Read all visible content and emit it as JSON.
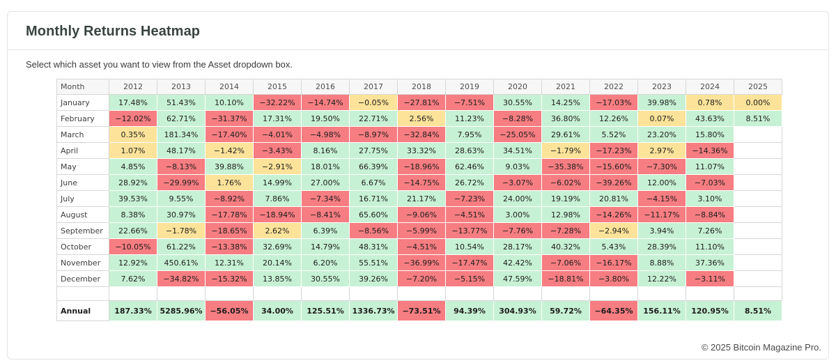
{
  "card": {
    "title": "Monthly Returns Heatmap",
    "description": "Select which asset you want to view from the Asset dropdown box.",
    "footer": "© 2025 Bitcoin Magazine Pro."
  },
  "colors": {
    "g": "#c7f1d4",
    "r": "#f67d81",
    "y": "#fde39a",
    "e": "#ffffff"
  },
  "chart_data": {
    "type": "heatmap",
    "title": "Monthly Returns Heatmap",
    "unit": "percent monthly return",
    "tone_legend": {
      "g": "positive (green)",
      "r": "negative (red)",
      "y": "near-zero (yellow)",
      "e": "no data"
    },
    "columns": [
      "Month",
      "2012",
      "2013",
      "2014",
      "2015",
      "2016",
      "2017",
      "2018",
      "2019",
      "2020",
      "2021",
      "2022",
      "2023",
      "2024",
      "2025"
    ],
    "rows": [
      {
        "label": "January",
        "cells": [
          [
            "17.48%",
            "g"
          ],
          [
            "51.43%",
            "g"
          ],
          [
            "10.10%",
            "g"
          ],
          [
            "−32.22%",
            "r"
          ],
          [
            "−14.74%",
            "r"
          ],
          [
            "−0.05%",
            "y"
          ],
          [
            "−27.81%",
            "r"
          ],
          [
            "−7.51%",
            "r"
          ],
          [
            "30.55%",
            "g"
          ],
          [
            "14.25%",
            "g"
          ],
          [
            "−17.03%",
            "r"
          ],
          [
            "39.98%",
            "g"
          ],
          [
            "0.78%",
            "y"
          ],
          [
            "0.00%",
            "y"
          ]
        ]
      },
      {
        "label": "February",
        "cells": [
          [
            "−12.02%",
            "r"
          ],
          [
            "62.71%",
            "g"
          ],
          [
            "−31.37%",
            "r"
          ],
          [
            "17.31%",
            "g"
          ],
          [
            "19.50%",
            "g"
          ],
          [
            "22.71%",
            "g"
          ],
          [
            "2.56%",
            "y"
          ],
          [
            "11.23%",
            "g"
          ],
          [
            "−8.28%",
            "r"
          ],
          [
            "36.80%",
            "g"
          ],
          [
            "12.26%",
            "g"
          ],
          [
            "0.07%",
            "y"
          ],
          [
            "43.63%",
            "g"
          ],
          [
            "8.51%",
            "g"
          ]
        ]
      },
      {
        "label": "March",
        "cells": [
          [
            "0.35%",
            "y"
          ],
          [
            "181.34%",
            "g"
          ],
          [
            "−17.40%",
            "r"
          ],
          [
            "−4.01%",
            "r"
          ],
          [
            "−4.98%",
            "r"
          ],
          [
            "−8.97%",
            "r"
          ],
          [
            "−32.84%",
            "r"
          ],
          [
            "7.95%",
            "g"
          ],
          [
            "−25.05%",
            "r"
          ],
          [
            "29.61%",
            "g"
          ],
          [
            "5.52%",
            "g"
          ],
          [
            "23.20%",
            "g"
          ],
          [
            "15.80%",
            "g"
          ],
          [
            "",
            "e"
          ]
        ]
      },
      {
        "label": "April",
        "cells": [
          [
            "1.07%",
            "y"
          ],
          [
            "48.17%",
            "g"
          ],
          [
            "−1.42%",
            "y"
          ],
          [
            "−3.43%",
            "r"
          ],
          [
            "8.16%",
            "g"
          ],
          [
            "27.75%",
            "g"
          ],
          [
            "33.32%",
            "g"
          ],
          [
            "28.63%",
            "g"
          ],
          [
            "34.51%",
            "g"
          ],
          [
            "−1.79%",
            "y"
          ],
          [
            "−17.23%",
            "r"
          ],
          [
            "2.97%",
            "y"
          ],
          [
            "−14.36%",
            "r"
          ],
          [
            "",
            "e"
          ]
        ]
      },
      {
        "label": "May",
        "cells": [
          [
            "4.85%",
            "g"
          ],
          [
            "−8.13%",
            "r"
          ],
          [
            "39.88%",
            "g"
          ],
          [
            "−2.91%",
            "y"
          ],
          [
            "18.01%",
            "g"
          ],
          [
            "66.39%",
            "g"
          ],
          [
            "−18.96%",
            "r"
          ],
          [
            "62.46%",
            "g"
          ],
          [
            "9.03%",
            "g"
          ],
          [
            "−35.38%",
            "r"
          ],
          [
            "−15.60%",
            "r"
          ],
          [
            "−7.30%",
            "r"
          ],
          [
            "11.07%",
            "g"
          ],
          [
            "",
            "e"
          ]
        ]
      },
      {
        "label": "June",
        "cells": [
          [
            "28.92%",
            "g"
          ],
          [
            "−29.99%",
            "r"
          ],
          [
            "1.76%",
            "y"
          ],
          [
            "14.99%",
            "g"
          ],
          [
            "27.00%",
            "g"
          ],
          [
            "6.67%",
            "g"
          ],
          [
            "−14.75%",
            "r"
          ],
          [
            "26.72%",
            "g"
          ],
          [
            "−3.07%",
            "r"
          ],
          [
            "−6.02%",
            "r"
          ],
          [
            "−39.26%",
            "r"
          ],
          [
            "12.00%",
            "g"
          ],
          [
            "−7.03%",
            "r"
          ],
          [
            "",
            "e"
          ]
        ]
      },
      {
        "label": "July",
        "cells": [
          [
            "39.53%",
            "g"
          ],
          [
            "9.55%",
            "g"
          ],
          [
            "−8.92%",
            "r"
          ],
          [
            "7.86%",
            "g"
          ],
          [
            "−7.34%",
            "r"
          ],
          [
            "16.71%",
            "g"
          ],
          [
            "21.17%",
            "g"
          ],
          [
            "−7.23%",
            "r"
          ],
          [
            "24.00%",
            "g"
          ],
          [
            "19.19%",
            "g"
          ],
          [
            "20.81%",
            "g"
          ],
          [
            "−4.15%",
            "r"
          ],
          [
            "3.10%",
            "g"
          ],
          [
            "",
            "e"
          ]
        ]
      },
      {
        "label": "August",
        "cells": [
          [
            "8.38%",
            "g"
          ],
          [
            "30.97%",
            "g"
          ],
          [
            "−17.78%",
            "r"
          ],
          [
            "−18.94%",
            "r"
          ],
          [
            "−8.41%",
            "r"
          ],
          [
            "65.60%",
            "g"
          ],
          [
            "−9.06%",
            "r"
          ],
          [
            "−4.51%",
            "r"
          ],
          [
            "3.00%",
            "g"
          ],
          [
            "12.98%",
            "g"
          ],
          [
            "−14.26%",
            "r"
          ],
          [
            "−11.17%",
            "r"
          ],
          [
            "−8.84%",
            "r"
          ],
          [
            "",
            "e"
          ]
        ]
      },
      {
        "label": "September",
        "cells": [
          [
            "22.66%",
            "g"
          ],
          [
            "−1.78%",
            "y"
          ],
          [
            "−18.65%",
            "r"
          ],
          [
            "2.62%",
            "y"
          ],
          [
            "6.39%",
            "g"
          ],
          [
            "−8.56%",
            "r"
          ],
          [
            "−5.99%",
            "r"
          ],
          [
            "−13.77%",
            "r"
          ],
          [
            "−7.76%",
            "r"
          ],
          [
            "−7.28%",
            "r"
          ],
          [
            "−2.94%",
            "y"
          ],
          [
            "3.94%",
            "g"
          ],
          [
            "7.26%",
            "g"
          ],
          [
            "",
            "e"
          ]
        ]
      },
      {
        "label": "October",
        "cells": [
          [
            "−10.05%",
            "r"
          ],
          [
            "61.22%",
            "g"
          ],
          [
            "−13.38%",
            "r"
          ],
          [
            "32.69%",
            "g"
          ],
          [
            "14.79%",
            "g"
          ],
          [
            "48.31%",
            "g"
          ],
          [
            "−4.51%",
            "r"
          ],
          [
            "10.54%",
            "g"
          ],
          [
            "28.17%",
            "g"
          ],
          [
            "40.32%",
            "g"
          ],
          [
            "5.43%",
            "g"
          ],
          [
            "28.39%",
            "g"
          ],
          [
            "11.10%",
            "g"
          ],
          [
            "",
            "e"
          ]
        ]
      },
      {
        "label": "November",
        "cells": [
          [
            "12.92%",
            "g"
          ],
          [
            "450.61%",
            "g"
          ],
          [
            "12.31%",
            "g"
          ],
          [
            "20.14%",
            "g"
          ],
          [
            "6.20%",
            "g"
          ],
          [
            "55.51%",
            "g"
          ],
          [
            "−36.99%",
            "r"
          ],
          [
            "−17.47%",
            "r"
          ],
          [
            "42.42%",
            "g"
          ],
          [
            "−7.06%",
            "r"
          ],
          [
            "−16.17%",
            "r"
          ],
          [
            "8.88%",
            "g"
          ],
          [
            "37.36%",
            "g"
          ],
          [
            "",
            "e"
          ]
        ]
      },
      {
        "label": "December",
        "cells": [
          [
            "7.62%",
            "g"
          ],
          [
            "−34.82%",
            "r"
          ],
          [
            "−15.32%",
            "r"
          ],
          [
            "13.85%",
            "g"
          ],
          [
            "30.55%",
            "g"
          ],
          [
            "39.26%",
            "g"
          ],
          [
            "−7.20%",
            "r"
          ],
          [
            "−5.15%",
            "r"
          ],
          [
            "47.59%",
            "g"
          ],
          [
            "−18.81%",
            "r"
          ],
          [
            "−3.80%",
            "r"
          ],
          [
            "12.22%",
            "g"
          ],
          [
            "−3.11%",
            "r"
          ],
          [
            "",
            "e"
          ]
        ]
      }
    ],
    "annual_row": {
      "label": "Annual",
      "cells": [
        [
          "187.33%",
          "g"
        ],
        [
          "5285.96%",
          "g"
        ],
        [
          "−56.05%",
          "r"
        ],
        [
          "34.00%",
          "g"
        ],
        [
          "125.51%",
          "g"
        ],
        [
          "1336.73%",
          "g"
        ],
        [
          "−73.51%",
          "r"
        ],
        [
          "94.39%",
          "g"
        ],
        [
          "304.93%",
          "g"
        ],
        [
          "59.72%",
          "g"
        ],
        [
          "−64.35%",
          "r"
        ],
        [
          "156.11%",
          "g"
        ],
        [
          "120.95%",
          "g"
        ],
        [
          "8.51%",
          "g"
        ]
      ]
    }
  }
}
